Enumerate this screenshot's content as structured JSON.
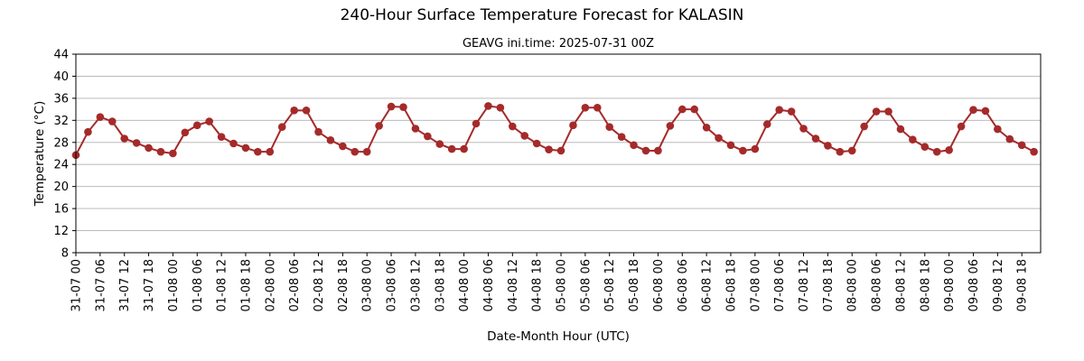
{
  "chart_data": {
    "type": "line",
    "title": "240-Hour Surface Temperature Forecast for KALASIN",
    "subtitle": "GEAVG ini.time: 2025-07-31 00Z",
    "xlabel": "Date-Month Hour (UTC)",
    "ylabel": "Temperature (°C)",
    "ylim": [
      8,
      44
    ],
    "yticks": [
      8,
      12,
      16,
      20,
      24,
      28,
      32,
      36,
      40,
      44
    ],
    "grid": "horizontal",
    "x_step_hours": 3,
    "x": [
      "31-07 00",
      "31-07 03",
      "31-07 06",
      "31-07 09",
      "31-07 12",
      "31-07 15",
      "31-07 18",
      "31-07 21",
      "01-08 00",
      "01-08 03",
      "01-08 06",
      "01-08 09",
      "01-08 12",
      "01-08 15",
      "01-08 18",
      "01-08 21",
      "02-08 00",
      "02-08 03",
      "02-08 06",
      "02-08 09",
      "02-08 12",
      "02-08 15",
      "02-08 18",
      "02-08 21",
      "03-08 00",
      "03-08 03",
      "03-08 06",
      "03-08 09",
      "03-08 12",
      "03-08 15",
      "03-08 18",
      "03-08 21",
      "04-08 00",
      "04-08 03",
      "04-08 06",
      "04-08 09",
      "04-08 12",
      "04-08 15",
      "04-08 18",
      "04-08 21",
      "05-08 00",
      "05-08 03",
      "05-08 06",
      "05-08 09",
      "05-08 12",
      "05-08 15",
      "05-08 18",
      "05-08 21",
      "06-08 00",
      "06-08 03",
      "06-08 06",
      "06-08 09",
      "06-08 12",
      "06-08 15",
      "06-08 18",
      "06-08 21",
      "07-08 00",
      "07-08 03",
      "07-08 06",
      "07-08 09",
      "07-08 12",
      "07-08 15",
      "07-08 18",
      "07-08 21",
      "08-08 00",
      "08-08 03",
      "08-08 06",
      "08-08 09",
      "08-08 12",
      "08-08 15",
      "08-08 18",
      "08-08 21",
      "09-08 00",
      "09-08 03",
      "09-08 06",
      "09-08 09",
      "09-08 12",
      "09-08 15",
      "09-08 18",
      "09-08 21"
    ],
    "xtick_labels": [
      "31-07 00",
      "31-07 06",
      "31-07 12",
      "31-07 18",
      "01-08 00",
      "01-08 06",
      "01-08 12",
      "01-08 18",
      "02-08 00",
      "02-08 06",
      "02-08 12",
      "02-08 18",
      "03-08 00",
      "03-08 06",
      "03-08 12",
      "03-08 18",
      "04-08 00",
      "04-08 06",
      "04-08 12",
      "04-08 18",
      "05-08 00",
      "05-08 06",
      "05-08 12",
      "05-08 18",
      "06-08 00",
      "06-08 06",
      "06-08 12",
      "06-08 18",
      "07-08 00",
      "07-08 06",
      "07-08 12",
      "07-08 18",
      "08-08 00",
      "08-08 06",
      "08-08 12",
      "08-08 18",
      "09-08 00",
      "09-08 06",
      "09-08 12",
      "09-08 18"
    ],
    "series": [
      {
        "color": "#a52a2a",
        "values": [
          25.7,
          29.9,
          32.6,
          31.8,
          28.7,
          27.9,
          27.0,
          26.3,
          26.0,
          29.8,
          31.1,
          31.8,
          29.0,
          27.8,
          27.0,
          26.3,
          26.3,
          30.8,
          33.8,
          33.8,
          29.9,
          28.4,
          27.3,
          26.3,
          26.3,
          31.0,
          34.5,
          34.4,
          30.5,
          29.1,
          27.7,
          26.8,
          26.8,
          31.4,
          34.6,
          34.3,
          30.9,
          29.2,
          27.8,
          26.7,
          26.5,
          31.1,
          34.3,
          34.3,
          30.8,
          29.0,
          27.5,
          26.5,
          26.5,
          31.0,
          34.0,
          34.0,
          30.7,
          28.8,
          27.5,
          26.5,
          26.8,
          31.3,
          33.9,
          33.6,
          30.5,
          28.7,
          27.4,
          26.3,
          26.5,
          30.9,
          33.6,
          33.6,
          30.4,
          28.5,
          27.2,
          26.3,
          26.6,
          30.9,
          33.9,
          33.7,
          30.4,
          28.6,
          27.5,
          26.3
        ]
      }
    ]
  }
}
